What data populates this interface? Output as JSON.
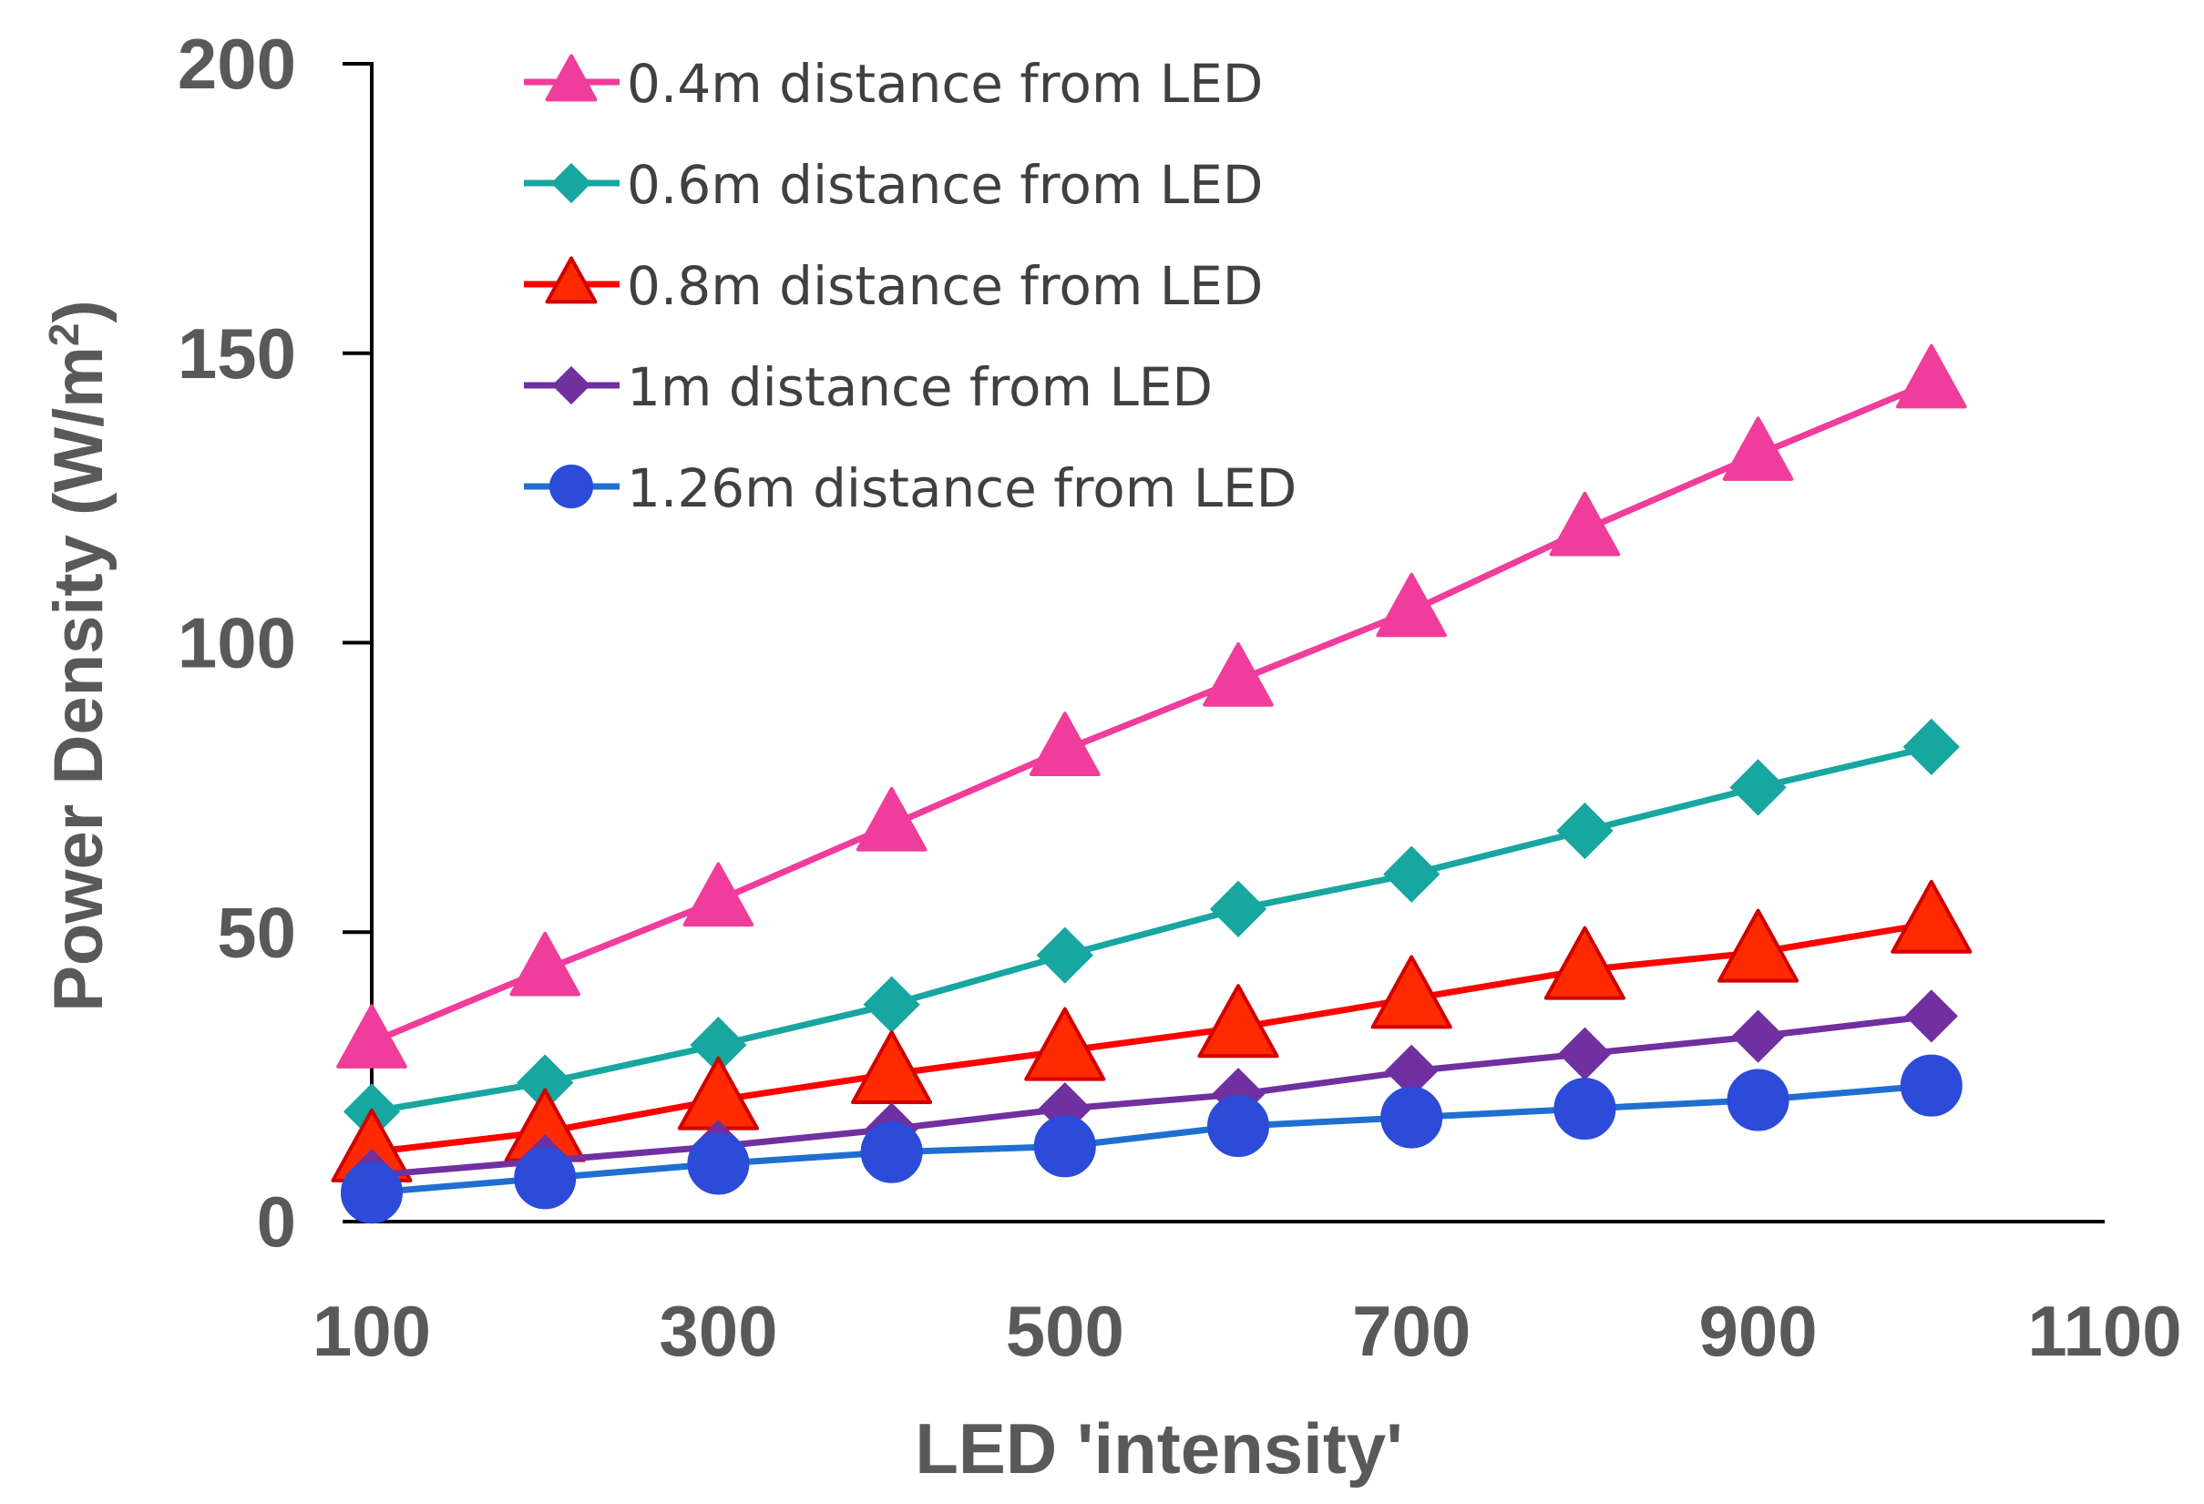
{
  "chart_data": {
    "type": "line",
    "title": "",
    "xlabel": "LED 'intensity'",
    "ylabel": "Power Density (W/m",
    "ylabel_superscript": "2",
    "ylabel_close": ")",
    "xlim": [
      100,
      1100
    ],
    "ylim": [
      0,
      200
    ],
    "xticks": [
      100,
      300,
      500,
      700,
      900,
      1100
    ],
    "yticks": [
      0,
      50,
      100,
      150,
      200
    ],
    "grid": false,
    "legend_position": "top-left",
    "x": [
      100,
      200,
      300,
      400,
      500,
      600,
      700,
      800,
      900,
      1000
    ],
    "series": [
      {
        "name": "0.4m distance from LED",
        "marker": "triangle",
        "color": "#F03C9B",
        "marker_color": "#F03C9B",
        "marker_edge": "#F03C9B",
        "line_color": "#F03C9B",
        "values": [
          31,
          43.5,
          55.5,
          68.5,
          81.5,
          93.5,
          105.5,
          119.5,
          132.5,
          145
        ]
      },
      {
        "name": "0.6m distance from LED",
        "marker": "diamond",
        "color": "#17A6A0",
        "marker_color": "#17A6A0",
        "marker_edge": "#17A6A0",
        "line_color": "#17A6A0",
        "values": [
          19,
          24,
          30.5,
          37.5,
          46,
          54,
          60,
          67.5,
          75,
          82
        ]
      },
      {
        "name": "0.8m distance from LED",
        "marker": "triangle",
        "color": "#FF2A00",
        "marker_color": "#FF2A00",
        "marker_edge": "#D00000",
        "line_color": "#FF0000",
        "values": [
          12,
          15.5,
          21,
          25.5,
          29.5,
          33.5,
          38.5,
          43.5,
          46.5,
          51.5
        ]
      },
      {
        "name": "1m distance from LED",
        "marker": "diamond",
        "color": "#7030A0",
        "marker_color": "#7030A0",
        "marker_edge": "#7030A0",
        "line_color": "#7030A0",
        "values": [
          8,
          10.5,
          13,
          16,
          19.5,
          22,
          26,
          29,
          32,
          35.5
        ]
      },
      {
        "name": "1.26m distance from LED",
        "marker": "circle",
        "color": "#2C4BD8",
        "marker_color": "#2C4BD8",
        "marker_edge": "#2C4BD8",
        "line_color": "#1F6FD0",
        "values": [
          5,
          7.5,
          10,
          12,
          13,
          16.5,
          18,
          19.5,
          21,
          23.5
        ]
      }
    ]
  }
}
